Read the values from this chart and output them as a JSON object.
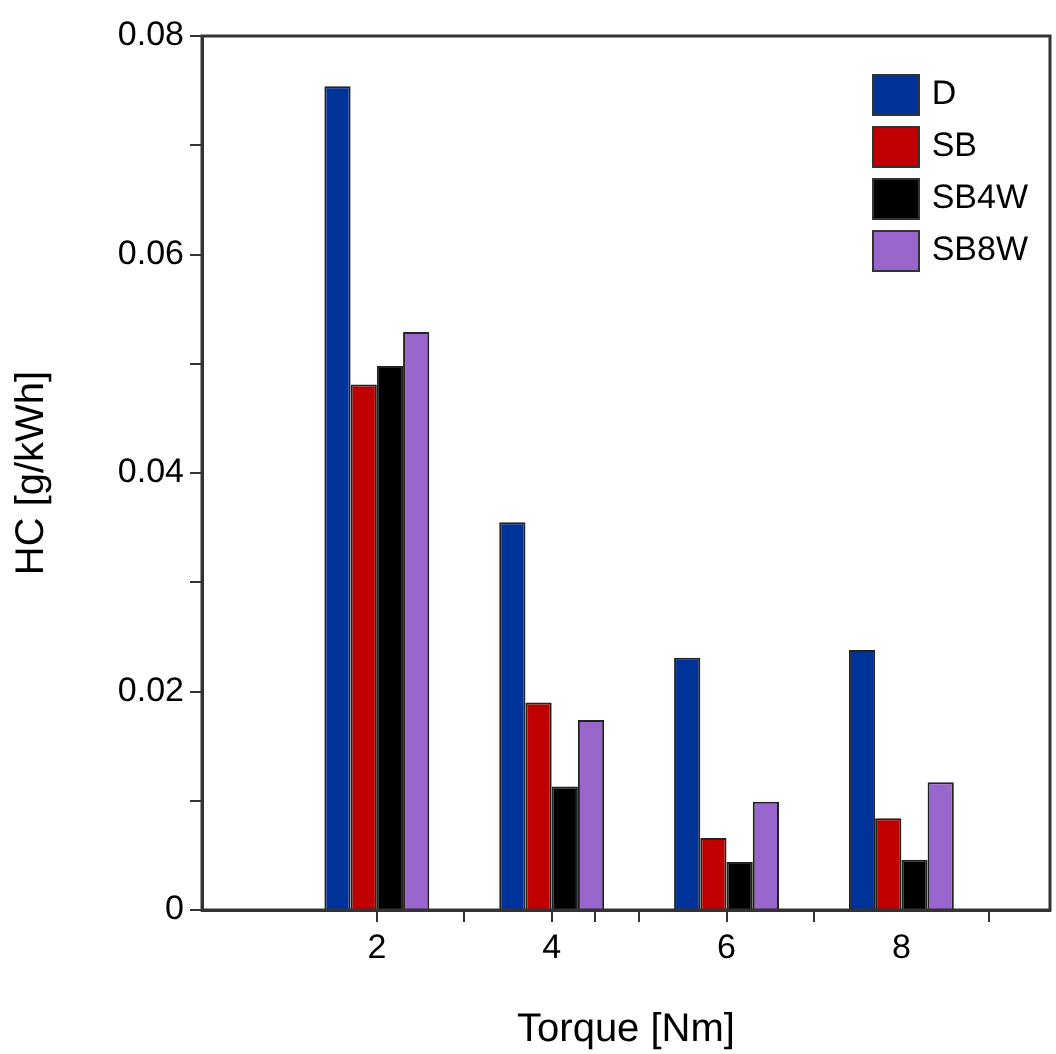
{
  "chart_data": {
    "type": "bar",
    "xlabel": "Torque [Nm]",
    "ylabel": "HC [g/kWh]",
    "x": [
      2,
      4,
      6,
      8
    ],
    "series": [
      {
        "name": "D",
        "color": "#003399",
        "values": [
          0.0754,
          0.0355,
          0.0231,
          0.0238
        ]
      },
      {
        "name": "SB",
        "color": "#c00000",
        "values": [
          0.0481,
          0.019,
          0.0066,
          0.0084
        ]
      },
      {
        "name": "SB4W",
        "color": "#000000",
        "values": [
          0.0498,
          0.0113,
          0.0044,
          0.0046
        ]
      },
      {
        "name": "SB8W",
        "color": "#9966cc",
        "values": [
          0.0529,
          0.0174,
          0.0099,
          0.0117
        ]
      }
    ],
    "xlim": [
      0,
      9.7
    ],
    "xticks": [
      {
        "value": 3,
        "label": null
      },
      {
        "value": 5,
        "label": null
      },
      {
        "value": 7,
        "label": null
      },
      2,
      4,
      6,
      8
    ],
    "ylim": [
      0,
      0.08
    ],
    "yticks": [
      0,
      {
        "value": 0.01,
        "label": null
      },
      0.02,
      {
        "value": 0.03,
        "label": null
      },
      0.04,
      {
        "value": 0.05,
        "label": null
      },
      0.06,
      {
        "value": 0.07,
        "label": null
      },
      0.08
    ],
    "grid": false,
    "legend": "top right"
  }
}
